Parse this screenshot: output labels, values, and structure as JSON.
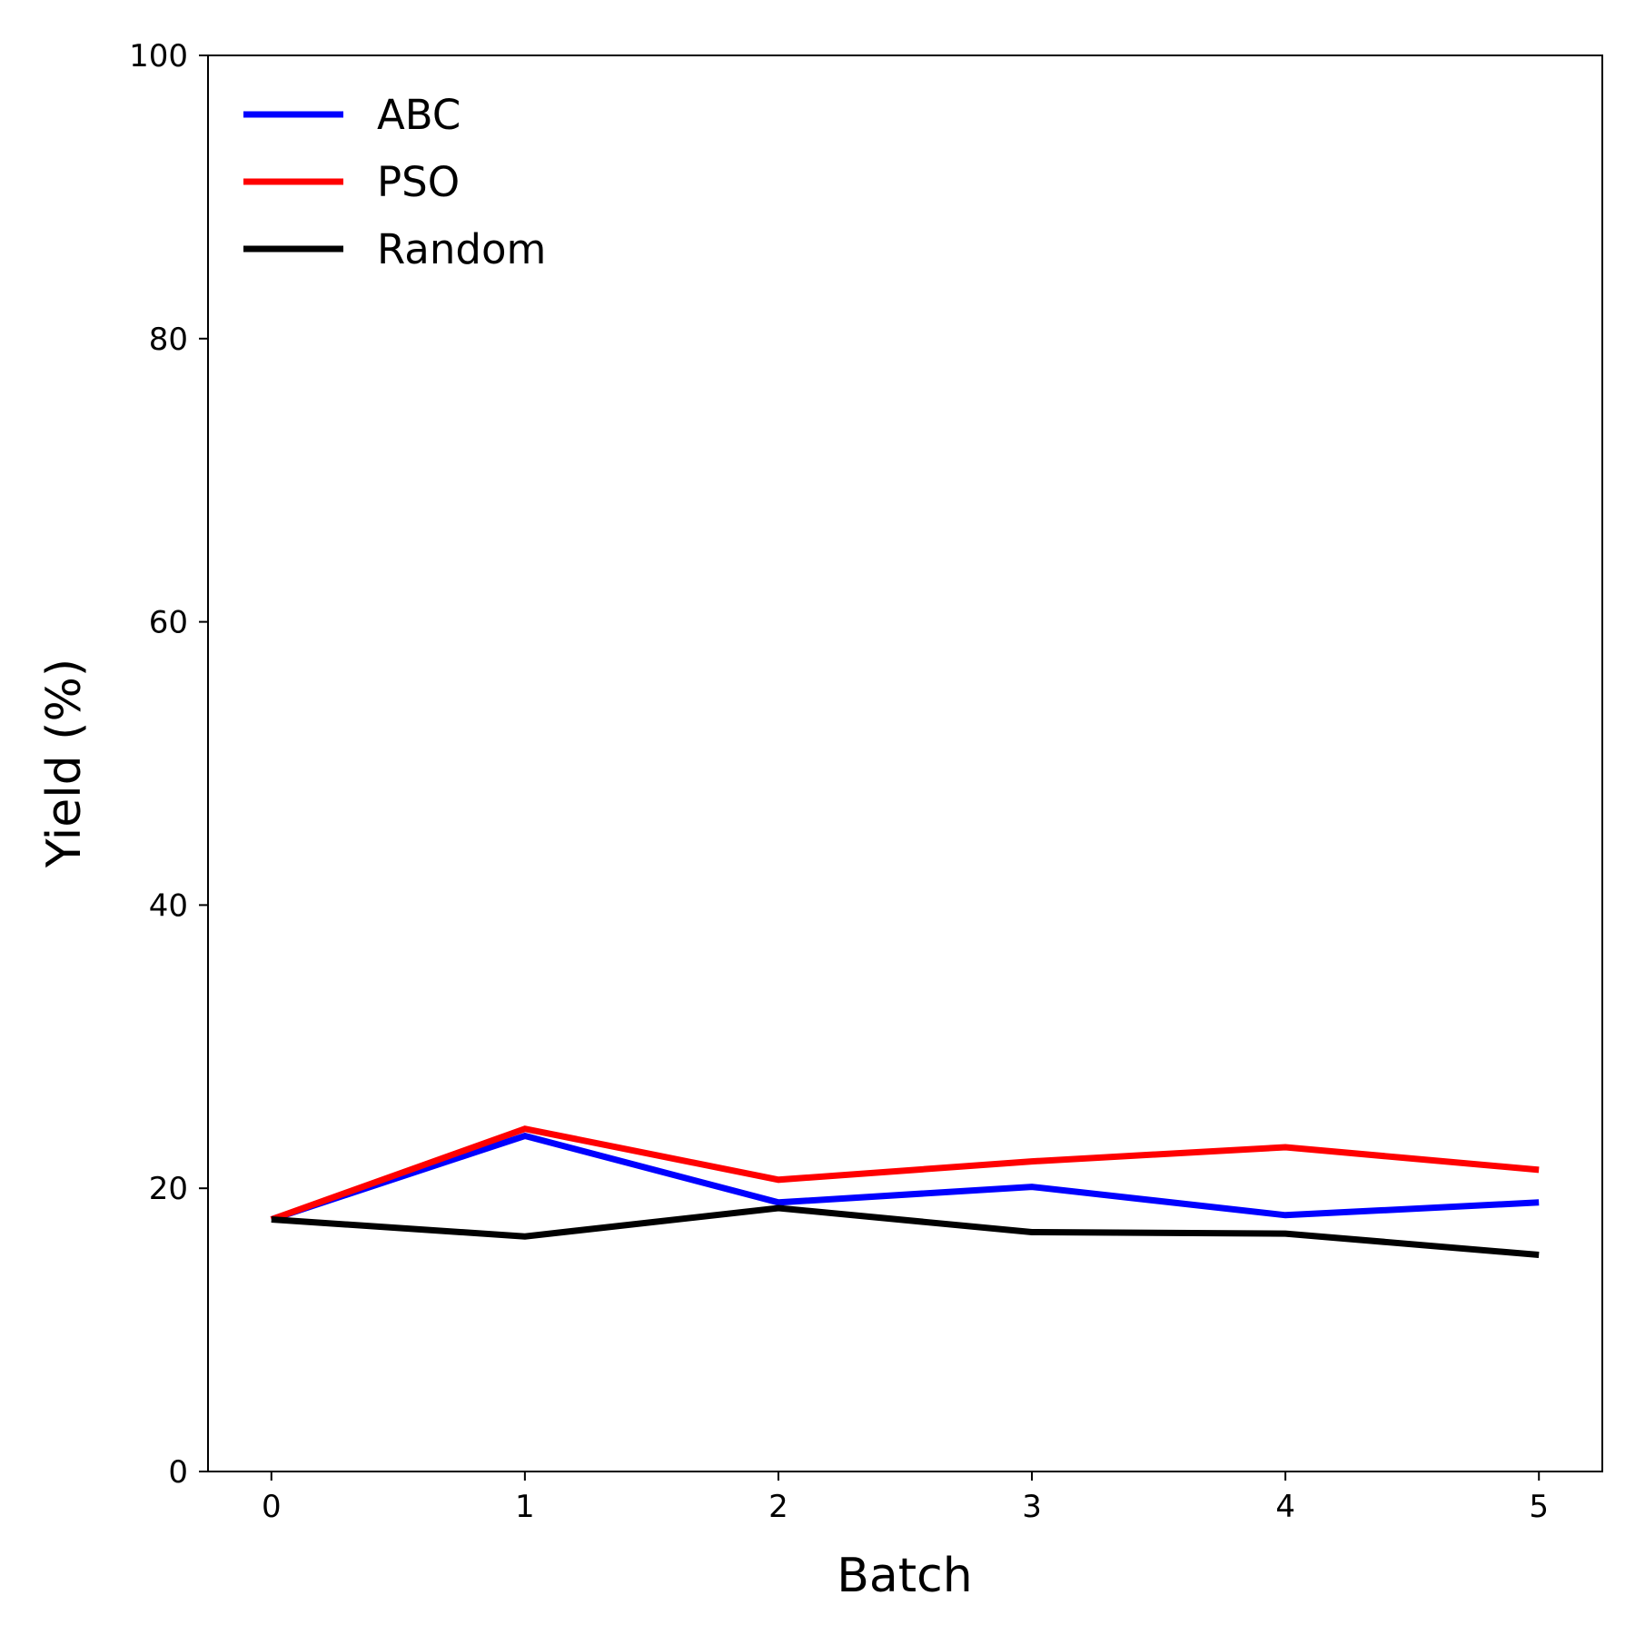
{
  "chart_data": {
    "type": "line",
    "title": "",
    "xlabel": "Batch",
    "ylabel": "Yield (%)",
    "x": [
      0,
      1,
      2,
      3,
      4,
      5
    ],
    "xlim": [
      -0.25,
      5.25
    ],
    "ylim": [
      0,
      100
    ],
    "xticks": [
      0,
      1,
      2,
      3,
      4,
      5
    ],
    "yticks": [
      0,
      20,
      40,
      60,
      80,
      100
    ],
    "grid": false,
    "legend_position": "top-left",
    "series": [
      {
        "name": "ABC",
        "color": "#0000ff",
        "values": [
          17.8,
          23.7,
          19.0,
          20.1,
          18.1,
          19.0
        ]
      },
      {
        "name": "PSO",
        "color": "#ff0000",
        "values": [
          17.8,
          24.2,
          20.6,
          21.9,
          22.9,
          21.3
        ]
      },
      {
        "name": "Random",
        "color": "#000000",
        "values": [
          17.8,
          16.6,
          18.6,
          16.9,
          16.8,
          15.3
        ]
      }
    ]
  }
}
